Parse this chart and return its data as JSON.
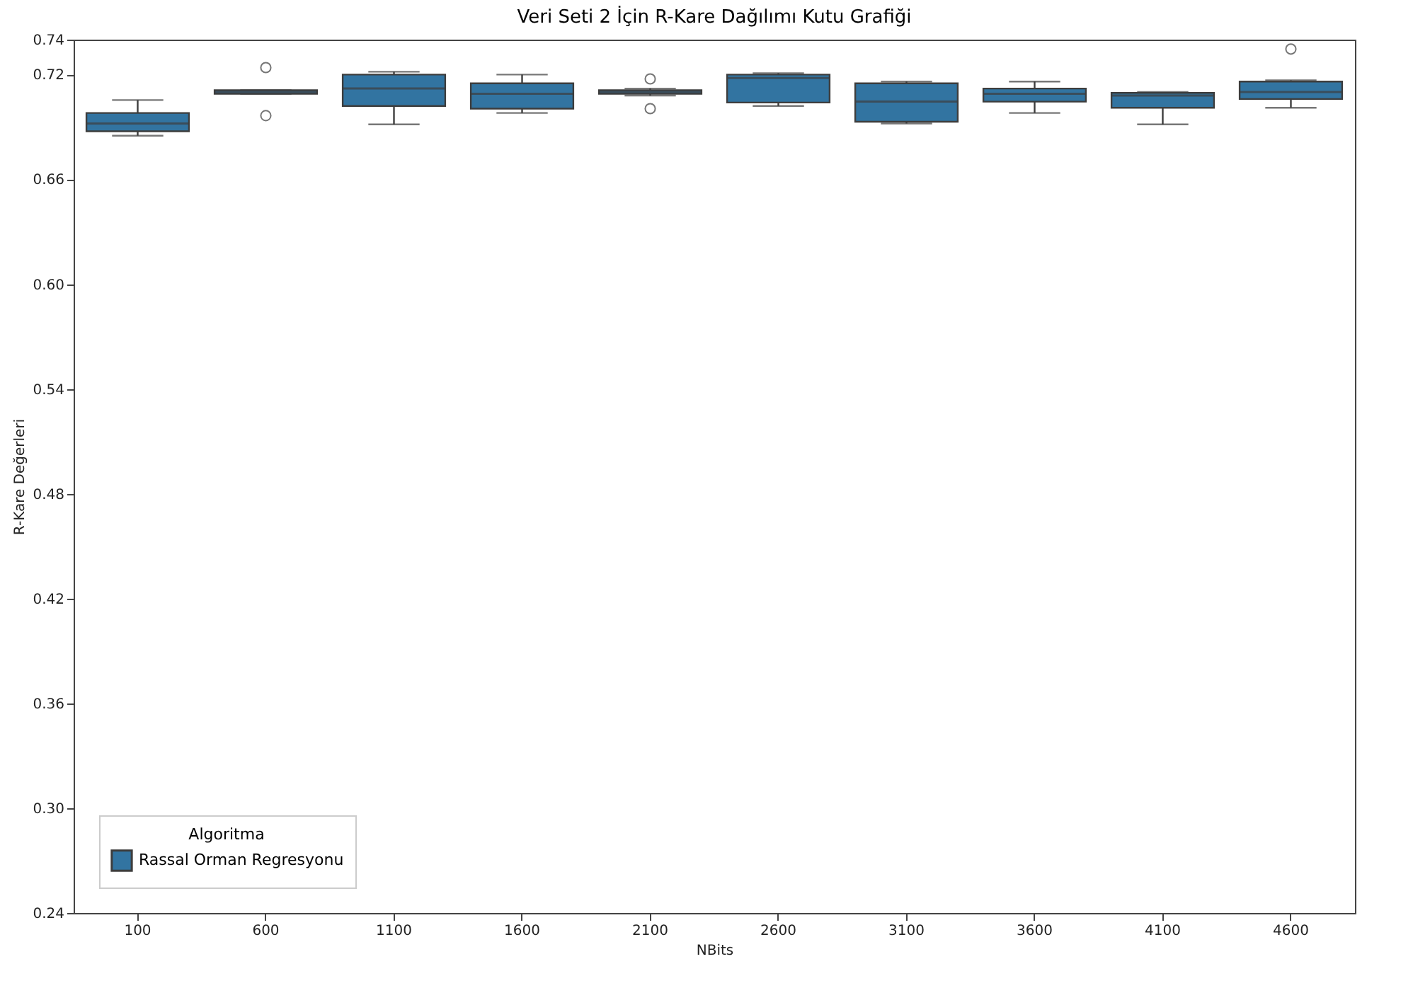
{
  "chart_data": {
    "type": "box",
    "title": "Veri Seti 2 İçin R-Kare Dağılımı Kutu Grafiği",
    "xlabel": "NBits",
    "ylabel": "R-Kare Değerleri",
    "legend_title": "Algoritma",
    "legend": "bottom left",
    "grid": false,
    "categories": [
      "100",
      "600",
      "1100",
      "1600",
      "2100",
      "2600",
      "3100",
      "3600",
      "4100",
      "4600"
    ],
    "ylim": [
      0.24,
      0.74
    ],
    "yticks": [
      {
        "value": 0.24,
        "label": "0.24"
      },
      {
        "value": 0.3,
        "label": "0.30"
      },
      {
        "value": 0.36,
        "label": "0.36"
      },
      {
        "value": 0.42,
        "label": "0.42"
      },
      {
        "value": 0.48,
        "label": "0.48"
      },
      {
        "value": 0.54,
        "label": "0.54"
      },
      {
        "value": 0.6,
        "label": "0.60"
      },
      {
        "value": 0.66,
        "label": "0.66"
      },
      {
        "value": 0.72,
        "label": "0.72"
      },
      {
        "value": 0.74,
        "label": "0.74"
      }
    ],
    "series": [
      {
        "name": "Rassal Orman Regresyonu",
        "color": "#3274a1",
        "boxes": [
          {
            "low": 0.685,
            "q1": 0.6875,
            "median": 0.692,
            "q3": 0.698,
            "high": 0.7054
          },
          {
            "low": 0.709,
            "q1": 0.709,
            "median": 0.71,
            "q3": 0.711,
            "high": 0.711,
            "outliers": [
              0.724,
              0.6965
            ]
          },
          {
            "low": 0.6915,
            "q1": 0.702,
            "median": 0.712,
            "q3": 0.72,
            "high": 0.7216
          },
          {
            "low": 0.698,
            "q1": 0.7005,
            "median": 0.709,
            "q3": 0.715,
            "high": 0.72
          },
          {
            "low": 0.708,
            "q1": 0.709,
            "median": 0.71,
            "q3": 0.711,
            "high": 0.712,
            "outliers": [
              0.7175,
              0.7005
            ]
          },
          {
            "low": 0.702,
            "q1": 0.704,
            "median": 0.718,
            "q3": 0.72,
            "high": 0.7208
          },
          {
            "low": 0.692,
            "q1": 0.693,
            "median": 0.7045,
            "q3": 0.715,
            "high": 0.716
          },
          {
            "low": 0.698,
            "q1": 0.7045,
            "median": 0.709,
            "q3": 0.712,
            "high": 0.716
          },
          {
            "low": 0.6915,
            "q1": 0.701,
            "median": 0.708,
            "q3": 0.7095,
            "high": 0.71
          },
          {
            "low": 0.701,
            "q1": 0.706,
            "median": 0.71,
            "q3": 0.716,
            "high": 0.7167,
            "outliers": [
              0.7346
            ]
          }
        ]
      }
    ]
  }
}
